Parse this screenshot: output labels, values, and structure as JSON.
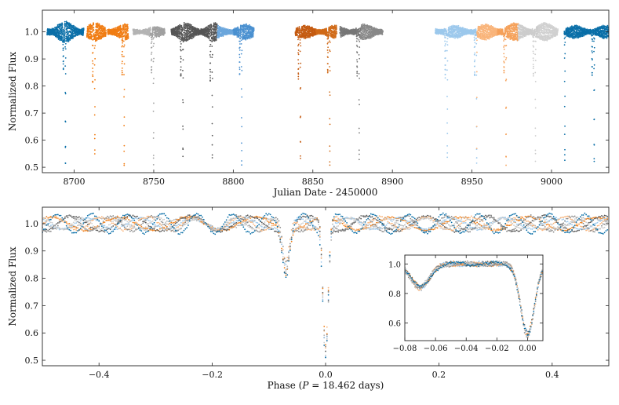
{
  "chart_data": [
    {
      "id": "lightcurve",
      "type": "scatter",
      "xlabel": "Julian Date - 2450000",
      "ylabel": "Normalized Flux",
      "xlim": [
        8680,
        9036
      ],
      "ylim": [
        0.48,
        1.08
      ],
      "xticks": [
        8700,
        8750,
        8800,
        8850,
        8900,
        8950,
        9000
      ],
      "xtick_labels": [
        "8700",
        "8750",
        "8800",
        "8850",
        "8900",
        "8950",
        "9000"
      ],
      "yticks": [
        0.5,
        0.6,
        0.7,
        0.8,
        0.9,
        1.0
      ],
      "ytick_labels": [
        "0.5",
        "0.6",
        "0.7",
        "0.8",
        "0.9",
        "1.0"
      ],
      "period_days": 18.462,
      "primary_epoch_jd": 8694.5,
      "secondary_phase": -0.07,
      "sectors": [
        {
          "start": 8683,
          "end": 8706,
          "color": "#0a6fa8",
          "amp": 0.035
        },
        {
          "start": 8708,
          "end": 8720,
          "color": "#f07c12",
          "amp": 0.03
        },
        {
          "start": 8721,
          "end": 8734,
          "color": "#f07c12",
          "amp": 0.025
        },
        {
          "start": 8737,
          "end": 8748,
          "color": "#b4b4b4",
          "amp": 0.015
        },
        {
          "start": 8748,
          "end": 8757,
          "color": "#a0a0a0",
          "amp": 0.015
        },
        {
          "start": 8761,
          "end": 8779,
          "color": "#555555",
          "amp": 0.03
        },
        {
          "start": 8779,
          "end": 8790,
          "color": "#555555",
          "amp": 0.03
        },
        {
          "start": 8790,
          "end": 8800,
          "color": "#6ba6dc",
          "amp": 0.02
        },
        {
          "start": 8800,
          "end": 8813,
          "color": "#4a90d0",
          "amp": 0.025
        },
        {
          "start": 8839,
          "end": 8852,
          "color": "#c45a10",
          "amp": 0.02
        },
        {
          "start": 8852,
          "end": 8865,
          "color": "#d06a18",
          "amp": 0.02
        },
        {
          "start": 8867,
          "end": 8880,
          "color": "#777777",
          "amp": 0.02
        },
        {
          "start": 8880,
          "end": 8894,
          "color": "#888888",
          "amp": 0.025
        },
        {
          "start": 8927,
          "end": 8940,
          "color": "#9cc8ec",
          "amp": 0.02
        },
        {
          "start": 8940,
          "end": 8953,
          "color": "#9cc8ec",
          "amp": 0.02
        },
        {
          "start": 8953,
          "end": 8966,
          "color": "#f9b47a",
          "amp": 0.025
        },
        {
          "start": 8966,
          "end": 8979,
          "color": "#f5a15a",
          "amp": 0.03
        },
        {
          "start": 8979,
          "end": 8992,
          "color": "#cccccc",
          "amp": 0.03
        },
        {
          "start": 8992,
          "end": 9004,
          "color": "#d0d0d0",
          "amp": 0.03
        },
        {
          "start": 9008,
          "end": 9022,
          "color": "#0a6fa8",
          "amp": 0.02
        },
        {
          "start": 9022,
          "end": 9036,
          "color": "#0a6fa8",
          "amp": 0.02
        }
      ]
    },
    {
      "id": "phase-folded",
      "type": "scatter",
      "xlabel": "Phase (P = 18.462 days)",
      "xlabel_prefix": "Phase (",
      "xlabel_var": "P",
      "xlabel_suffix": " = 18.462 days)",
      "ylabel": "Normalized Flux",
      "xlim": [
        -0.5,
        0.5
      ],
      "ylim": [
        0.48,
        1.06
      ],
      "xticks": [
        -0.4,
        -0.2,
        0.0,
        0.2,
        0.4
      ],
      "xtick_labels": [
        "−0.4",
        "−0.2",
        "0.0",
        "0.2",
        "0.4"
      ],
      "yticks": [
        0.5,
        0.6,
        0.7,
        0.8,
        0.9,
        1.0
      ],
      "ytick_labels": [
        "0.5",
        "0.6",
        "0.7",
        "0.8",
        "0.9",
        "1.0"
      ],
      "primary_depth_min": 0.52,
      "secondary_depth_min": 0.84,
      "secondary_phase": -0.07
    },
    {
      "id": "inset",
      "type": "scatter",
      "xlim": [
        -0.08,
        0.01
      ],
      "ylim": [
        0.48,
        1.06
      ],
      "xticks": [
        -0.08,
        -0.06,
        -0.04,
        -0.02,
        0.0
      ],
      "xtick_labels": [
        "−0.08",
        "−0.06",
        "−0.04",
        "−0.02",
        "0.00"
      ],
      "yticks": [
        0.6,
        0.8,
        1.0
      ],
      "ytick_labels": [
        "0.6",
        "0.8",
        "1.0"
      ]
    }
  ]
}
